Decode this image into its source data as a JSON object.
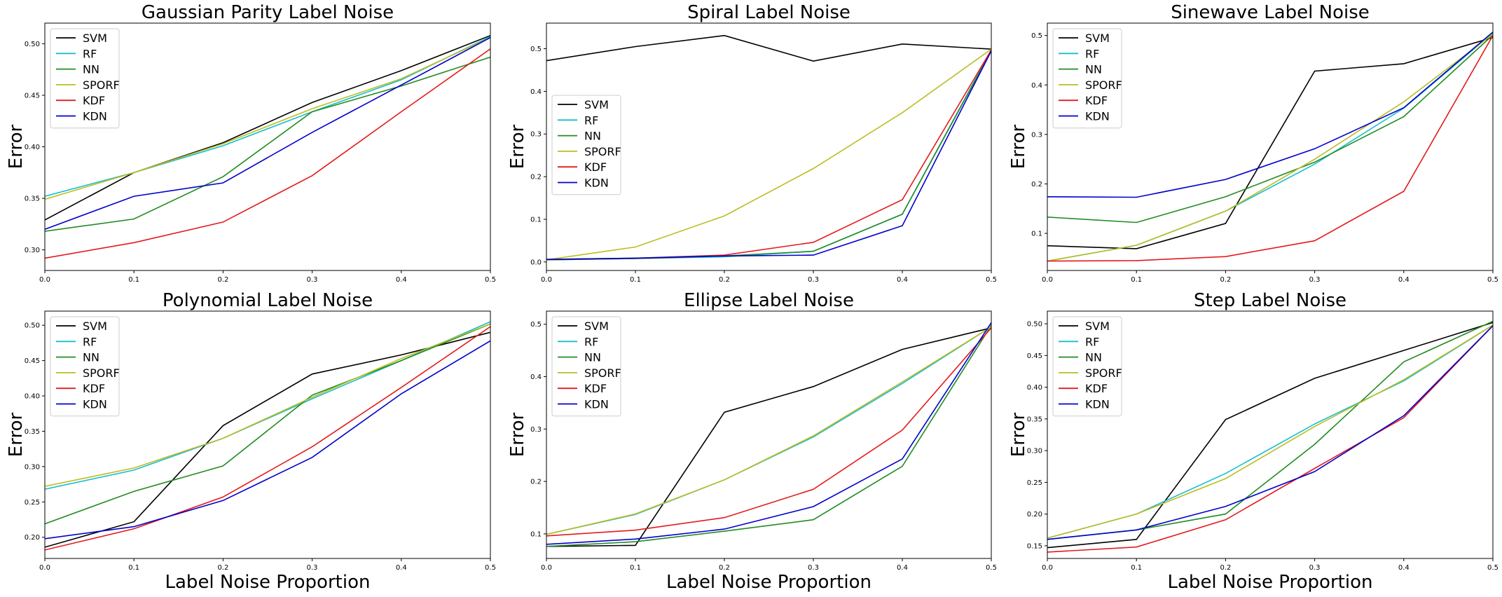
{
  "colors": {
    "SVM": "#000000",
    "RF": "#17becf",
    "NN": "#228b22",
    "SPORF": "#bcbd22",
    "KDF": "#e41a1c",
    "KDN": "#0000cd"
  },
  "chart_data": [
    {
      "type": "line",
      "title": "Gaussian Parity Label Noise",
      "xlabel": "",
      "ylabel": "Error",
      "x": [
        0.0,
        0.1,
        0.2,
        0.3,
        0.4,
        0.5
      ],
      "xlim": [
        0.0,
        0.5
      ],
      "ylim": [
        0.28,
        0.52
      ],
      "xticks": [
        "0.0",
        "0.1",
        "0.2",
        "0.3",
        "0.4",
        "0.5"
      ],
      "yticks": [
        0.3,
        0.35,
        0.4,
        0.45,
        0.5
      ],
      "yticklabels": [
        "0.30",
        "0.35",
        "0.40",
        "0.45",
        "0.50"
      ],
      "legend_position": "upper-left",
      "series": [
        {
          "name": "SVM",
          "values": [
            0.329,
            0.375,
            0.404,
            0.443,
            0.474,
            0.508
          ]
        },
        {
          "name": "RF",
          "values": [
            0.352,
            0.375,
            0.401,
            0.434,
            0.465,
            0.507
          ]
        },
        {
          "name": "NN",
          "values": [
            0.318,
            0.33,
            0.371,
            0.434,
            0.459,
            0.487
          ]
        },
        {
          "name": "SPORF",
          "values": [
            0.349,
            0.375,
            0.403,
            0.437,
            0.466,
            0.506
          ]
        },
        {
          "name": "KDF",
          "values": [
            0.292,
            0.307,
            0.327,
            0.372,
            0.434,
            0.495
          ]
        },
        {
          "name": "KDN",
          "values": [
            0.32,
            0.352,
            0.365,
            0.414,
            0.46,
            0.506
          ]
        }
      ]
    },
    {
      "type": "line",
      "title": "Spiral Label Noise",
      "xlabel": "",
      "ylabel": "Error",
      "x": [
        0.0,
        0.1,
        0.2,
        0.3,
        0.4,
        0.5
      ],
      "xlim": [
        0.0,
        0.5
      ],
      "ylim": [
        -0.02,
        0.56
      ],
      "xticks": [
        "0.0",
        "0.1",
        "0.2",
        "0.3",
        "0.4",
        "0.5"
      ],
      "yticks": [
        0.0,
        0.1,
        0.2,
        0.3,
        0.4,
        0.5
      ],
      "yticklabels": [
        "0.0",
        "0.1",
        "0.2",
        "0.3",
        "0.4",
        "0.5"
      ],
      "legend_position": "center-left",
      "series": [
        {
          "name": "SVM",
          "values": [
            0.472,
            0.505,
            0.531,
            0.471,
            0.511,
            0.499
          ]
        },
        {
          "name": "RF",
          "values": [
            0.005,
            0.008,
            0.012,
            0.025,
            0.112,
            0.497
          ]
        },
        {
          "name": "NN",
          "values": [
            0.005,
            0.008,
            0.014,
            0.025,
            0.112,
            0.495
          ]
        },
        {
          "name": "SPORF",
          "values": [
            0.005,
            0.035,
            0.108,
            0.219,
            0.35,
            0.499
          ]
        },
        {
          "name": "KDF",
          "values": [
            0.006,
            0.009,
            0.016,
            0.046,
            0.146,
            0.497
          ]
        },
        {
          "name": "KDN",
          "values": [
            0.006,
            0.009,
            0.014,
            0.016,
            0.085,
            0.495
          ]
        }
      ]
    },
    {
      "type": "line",
      "title": "Sinewave Label Noise",
      "xlabel": "",
      "ylabel": "Error",
      "x": [
        0.0,
        0.1,
        0.2,
        0.3,
        0.4,
        0.5
      ],
      "xlim": [
        0.0,
        0.5
      ],
      "ylim": [
        0.025,
        0.525
      ],
      "xticks": [
        "0.0",
        "0.1",
        "0.2",
        "0.3",
        "0.4",
        "0.5"
      ],
      "yticks": [
        0.1,
        0.2,
        0.3,
        0.4,
        0.5
      ],
      "yticklabels": [
        "0.1",
        "0.2",
        "0.3",
        "0.4",
        "0.5"
      ],
      "legend_position": "upper-left",
      "series": [
        {
          "name": "SVM",
          "values": [
            0.075,
            0.069,
            0.12,
            0.428,
            0.443,
            0.496
          ]
        },
        {
          "name": "RF",
          "values": [
            0.044,
            0.076,
            0.145,
            0.24,
            0.353,
            0.505
          ]
        },
        {
          "name": "NN",
          "values": [
            0.133,
            0.122,
            0.174,
            0.244,
            0.336,
            0.501
          ]
        },
        {
          "name": "SPORF",
          "values": [
            0.044,
            0.076,
            0.145,
            0.25,
            0.366,
            0.503
          ]
        },
        {
          "name": "KDF",
          "values": [
            0.044,
            0.045,
            0.053,
            0.085,
            0.185,
            0.5
          ]
        },
        {
          "name": "KDN",
          "values": [
            0.174,
            0.173,
            0.209,
            0.271,
            0.354,
            0.507
          ]
        }
      ]
    },
    {
      "type": "line",
      "title": "Polynomial Label Noise",
      "xlabel": "Label Noise Proportion",
      "ylabel": "Error",
      "x": [
        0.0,
        0.1,
        0.2,
        0.3,
        0.4,
        0.5
      ],
      "xlim": [
        0.0,
        0.5
      ],
      "ylim": [
        0.17,
        0.52
      ],
      "xticks": [
        "0.0",
        "0.1",
        "0.2",
        "0.3",
        "0.4",
        "0.5"
      ],
      "yticks": [
        0.2,
        0.25,
        0.3,
        0.35,
        0.4,
        0.45,
        0.5
      ],
      "yticklabels": [
        "0.20",
        "0.25",
        "0.30",
        "0.35",
        "0.40",
        "0.45",
        "0.50"
      ],
      "legend_position": "upper-left",
      "series": [
        {
          "name": "SVM",
          "values": [
            0.186,
            0.222,
            0.358,
            0.431,
            0.458,
            0.49
          ]
        },
        {
          "name": "RF",
          "values": [
            0.268,
            0.295,
            0.34,
            0.396,
            0.45,
            0.505
          ]
        },
        {
          "name": "NN",
          "values": [
            0.219,
            0.265,
            0.301,
            0.401,
            0.45,
            0.502
          ]
        },
        {
          "name": "SPORF",
          "values": [
            0.272,
            0.298,
            0.34,
            0.398,
            0.453,
            0.502
          ]
        },
        {
          "name": "KDF",
          "values": [
            0.182,
            0.212,
            0.257,
            0.328,
            0.412,
            0.498
          ]
        },
        {
          "name": "KDN",
          "values": [
            0.198,
            0.215,
            0.252,
            0.313,
            0.403,
            0.478
          ]
        }
      ]
    },
    {
      "type": "line",
      "title": "Ellipse Label Noise",
      "xlabel": "Label Noise Proportion",
      "ylabel": "Error",
      "x": [
        0.0,
        0.1,
        0.2,
        0.3,
        0.4,
        0.5
      ],
      "xlim": [
        0.0,
        0.5
      ],
      "ylim": [
        0.053,
        0.525
      ],
      "xticks": [
        "0.0",
        "0.1",
        "0.2",
        "0.3",
        "0.4",
        "0.5"
      ],
      "yticks": [
        0.1,
        0.2,
        0.3,
        0.4,
        0.5
      ],
      "yticklabels": [
        "0.1",
        "0.2",
        "0.3",
        "0.4",
        "0.5"
      ],
      "legend_position": "upper-left",
      "series": [
        {
          "name": "SVM",
          "values": [
            0.076,
            0.078,
            0.332,
            0.381,
            0.452,
            0.493
          ]
        },
        {
          "name": "RF",
          "values": [
            0.099,
            0.137,
            0.203,
            0.285,
            0.387,
            0.495
          ]
        },
        {
          "name": "NN",
          "values": [
            0.076,
            0.085,
            0.105,
            0.127,
            0.229,
            0.498
          ]
        },
        {
          "name": "SPORF",
          "values": [
            0.099,
            0.138,
            0.203,
            0.287,
            0.39,
            0.495
          ]
        },
        {
          "name": "KDF",
          "values": [
            0.096,
            0.107,
            0.131,
            0.185,
            0.298,
            0.493
          ]
        },
        {
          "name": "KDN",
          "values": [
            0.08,
            0.09,
            0.109,
            0.152,
            0.243,
            0.503
          ]
        }
      ]
    },
    {
      "type": "line",
      "title": "Step Label Noise",
      "xlabel": "Label Noise Proportion",
      "ylabel": "Error",
      "x": [
        0.0,
        0.1,
        0.2,
        0.3,
        0.4,
        0.5
      ],
      "xlim": [
        0.0,
        0.5
      ],
      "ylim": [
        0.13,
        0.52
      ],
      "xticks": [
        "0.0",
        "0.1",
        "0.2",
        "0.3",
        "0.4",
        "0.5"
      ],
      "yticks": [
        0.15,
        0.2,
        0.25,
        0.3,
        0.35,
        0.4,
        0.45,
        0.5
      ],
      "yticklabels": [
        "0.15",
        "0.20",
        "0.25",
        "0.30",
        "0.35",
        "0.40",
        "0.45",
        "0.50"
      ],
      "legend_position": "upper-left",
      "series": [
        {
          "name": "SVM",
          "values": [
            0.147,
            0.16,
            0.349,
            0.414,
            0.458,
            0.502
          ]
        },
        {
          "name": "RF",
          "values": [
            0.162,
            0.2,
            0.264,
            0.342,
            0.41,
            0.498
          ]
        },
        {
          "name": "NN",
          "values": [
            0.16,
            0.175,
            0.2,
            0.31,
            0.44,
            0.504
          ]
        },
        {
          "name": "SPORF",
          "values": [
            0.162,
            0.2,
            0.256,
            0.338,
            0.412,
            0.498
          ]
        },
        {
          "name": "KDF",
          "values": [
            0.14,
            0.148,
            0.191,
            0.272,
            0.352,
            0.497
          ]
        },
        {
          "name": "KDN",
          "values": [
            0.16,
            0.175,
            0.212,
            0.267,
            0.355,
            0.497
          ]
        }
      ]
    }
  ]
}
